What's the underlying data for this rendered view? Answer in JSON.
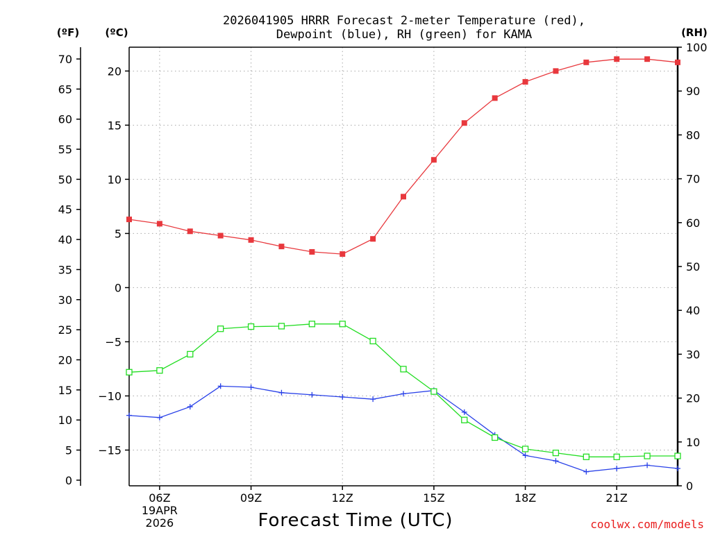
{
  "chart_data": {
    "type": "line",
    "title_line1": "2026041905 HRRR Forecast 2-meter Temperature (red),",
    "title_line2": "Dewpoint (blue), RH (green) for KAMA",
    "xlabel": "Forecast Time (UTC)",
    "credit": "coolwx.com/models",
    "units": {
      "fahrenheit": "(ºF)",
      "celsius": "(ºC)",
      "rh": "(RH)"
    },
    "x_hours": [
      5,
      6,
      7,
      8,
      9,
      10,
      11,
      12,
      13,
      14,
      15,
      16,
      17,
      18,
      19,
      20,
      21,
      22,
      23
    ],
    "x_ticks": [
      {
        "hour": 6,
        "label": "06Z",
        "sub1": "19APR",
        "sub2": "2026"
      },
      {
        "hour": 9,
        "label": "09Z"
      },
      {
        "hour": 12,
        "label": "12Z"
      },
      {
        "hour": 15,
        "label": "15Z"
      },
      {
        "hour": 18,
        "label": "18Z"
      },
      {
        "hour": 21,
        "label": "21Z"
      }
    ],
    "celsius_axis": {
      "range": [
        -18.3,
        22.2
      ],
      "ticks": [
        20,
        15,
        10,
        5,
        0,
        -5,
        -10,
        -15
      ],
      "labels": [
        "20",
        "15",
        "10",
        "5",
        "0",
        "−5",
        "−10",
        "−15"
      ]
    },
    "fahrenheit_axis": {
      "range": [
        0,
        72
      ],
      "ticks": [
        70,
        65,
        60,
        55,
        50,
        45,
        40,
        35,
        30,
        25,
        20,
        15,
        10,
        5,
        0
      ]
    },
    "rh_axis": {
      "range": [
        0,
        100
      ],
      "ticks": [
        100,
        90,
        80,
        70,
        60,
        50,
        40,
        30,
        20,
        10,
        0
      ]
    },
    "series": [
      {
        "name": "Temperature",
        "axis": "celsius",
        "color": "#e8383d",
        "marker": "filled-square",
        "values": [
          6.3,
          5.9,
          5.2,
          4.8,
          4.4,
          3.8,
          3.3,
          3.1,
          4.5,
          8.4,
          11.8,
          15.2,
          17.5,
          19.0,
          20.0,
          20.8,
          21.1,
          21.1,
          20.8
        ]
      },
      {
        "name": "Dewpoint",
        "axis": "celsius",
        "color": "#2840e8",
        "marker": "plus",
        "values": [
          -11.8,
          -12.0,
          -11.0,
          -9.1,
          -9.2,
          -9.7,
          -9.9,
          -10.1,
          -10.3,
          -9.8,
          -9.5,
          -11.5,
          -13.6,
          -15.5,
          -16.0,
          -17.0,
          -16.7,
          -16.4,
          -16.7
        ]
      },
      {
        "name": "RH",
        "axis": "rh",
        "color": "#22dd22",
        "marker": "open-square",
        "values": [
          25.9,
          26.3,
          30.0,
          35.8,
          36.3,
          36.4,
          36.9,
          36.9,
          33.0,
          26.6,
          21.5,
          15.0,
          11.0,
          8.4,
          7.5,
          6.6,
          6.6,
          6.8,
          6.8
        ]
      }
    ],
    "grid": true,
    "grid_style": "dotted"
  }
}
